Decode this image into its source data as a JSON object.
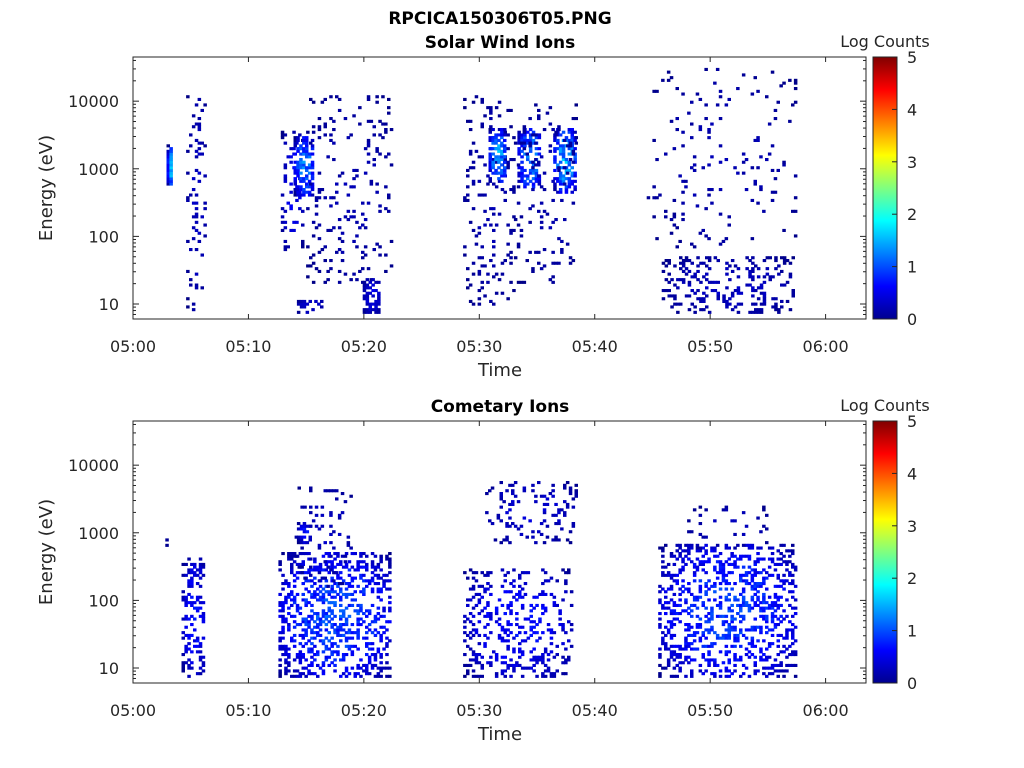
{
  "figure_title": "RPCICA150306T05.PNG",
  "chart_data": [
    {
      "type": "heatmap",
      "title": "Solar Wind Ions",
      "xlabel": "Time",
      "ylabel": "Energy (eV)",
      "x_ticks": [
        "05:00",
        "05:10",
        "05:20",
        "05:30",
        "05:40",
        "05:50",
        "06:00"
      ],
      "x_range_minutes": [
        0,
        63.5
      ],
      "y_scale": "log",
      "y_ticks": [
        10,
        100,
        1000,
        10000
      ],
      "y_tick_labels": [
        "10",
        "100",
        "1000",
        "10000"
      ],
      "ylim": [
        6,
        45000
      ],
      "colorbar": {
        "label": "Log Counts",
        "ticks": [
          "0",
          "1",
          "2",
          "3",
          "4",
          "5"
        ],
        "range": [
          0,
          5
        ]
      },
      "grid": false,
      "bursts": [
        {
          "t0": 2.9,
          "t1": 3.4,
          "e_lo": 550,
          "e_hi": 2200,
          "peak": 1.8,
          "density": 0.9
        },
        {
          "t0": 4.6,
          "t1": 6.2,
          "e_lo": 8,
          "e_hi": 15000,
          "peak": 0.4,
          "density": 0.12
        },
        {
          "t0": 12.8,
          "t1": 14.6,
          "e_lo": 60,
          "e_hi": 3500,
          "peak": 0.7,
          "density": 0.14
        },
        {
          "t0": 13.9,
          "t1": 15.6,
          "e_lo": 400,
          "e_hi": 3000,
          "peak": 1.5,
          "density": 0.6
        },
        {
          "t0": 14.2,
          "t1": 16.4,
          "e_lo": 7,
          "e_hi": 12,
          "peak": 0.5,
          "density": 0.4
        },
        {
          "t0": 15.0,
          "t1": 22.5,
          "e_lo": 20,
          "e_hi": 12000,
          "peak": 0.3,
          "density": 0.09
        },
        {
          "t0": 19.9,
          "t1": 21.3,
          "e_lo": 7,
          "e_hi": 25,
          "peak": 0.6,
          "density": 0.45
        },
        {
          "t0": 28.6,
          "t1": 33.0,
          "e_lo": 10,
          "e_hi": 12000,
          "peak": 0.3,
          "density": 0.09
        },
        {
          "t0": 30.8,
          "t1": 32.2,
          "e_lo": 600,
          "e_hi": 4000,
          "peak": 1.7,
          "density": 0.5
        },
        {
          "t0": 33.3,
          "t1": 35.2,
          "e_lo": 500,
          "e_hi": 4000,
          "peak": 1.6,
          "density": 0.5
        },
        {
          "t0": 36.4,
          "t1": 38.3,
          "e_lo": 450,
          "e_hi": 4000,
          "peak": 1.8,
          "density": 0.55
        },
        {
          "t0": 33.0,
          "t1": 38.5,
          "e_lo": 20,
          "e_hi": 9000,
          "peak": 0.3,
          "density": 0.08
        },
        {
          "t0": 44.5,
          "t1": 57.5,
          "e_lo": 60,
          "e_hi": 30000,
          "peak": 0.3,
          "density": 0.035
        },
        {
          "t0": 45.8,
          "t1": 57.3,
          "e_lo": 7,
          "e_hi": 50,
          "peak": 0.4,
          "density": 0.22
        }
      ]
    },
    {
      "type": "heatmap",
      "title": "Cometary Ions",
      "xlabel": "Time",
      "ylabel": "Energy (eV)",
      "x_ticks": [
        "05:00",
        "05:10",
        "05:20",
        "05:30",
        "05:40",
        "05:50",
        "06:00"
      ],
      "x_range_minutes": [
        0,
        63.5
      ],
      "y_scale": "log",
      "y_ticks": [
        10,
        100,
        1000,
        10000
      ],
      "y_tick_labels": [
        "10",
        "100",
        "1000",
        "10000"
      ],
      "ylim": [
        6,
        45000
      ],
      "colorbar": {
        "label": "Log Counts",
        "ticks": [
          "0",
          "1",
          "2",
          "3",
          "4",
          "5"
        ],
        "range": [
          0,
          5
        ]
      },
      "grid": false,
      "bursts": [
        {
          "t0": 2.8,
          "t1": 3.3,
          "e_lo": 600,
          "e_hi": 1000,
          "peak": 0.3,
          "density": 0.3
        },
        {
          "t0": 4.2,
          "t1": 6.2,
          "e_lo": 7,
          "e_hi": 450,
          "peak": 0.8,
          "density": 0.35
        },
        {
          "t0": 12.6,
          "t1": 22.3,
          "e_lo": 7,
          "e_hi": 500,
          "peak": 1.2,
          "density": 0.35
        },
        {
          "t0": 14.2,
          "t1": 15.3,
          "e_lo": 700,
          "e_hi": 1500,
          "peak": 0.8,
          "density": 0.5
        },
        {
          "t0": 14.0,
          "t1": 19.0,
          "e_lo": 150,
          "e_hi": 5500,
          "peak": 0.4,
          "density": 0.1
        },
        {
          "t0": 28.6,
          "t1": 37.9,
          "e_lo": 7,
          "e_hi": 300,
          "peak": 0.8,
          "density": 0.22
        },
        {
          "t0": 30.5,
          "t1": 38.3,
          "e_lo": 700,
          "e_hi": 6000,
          "peak": 0.5,
          "density": 0.15
        },
        {
          "t0": 45.5,
          "t1": 57.5,
          "e_lo": 7,
          "e_hi": 700,
          "peak": 1.1,
          "density": 0.3
        },
        {
          "t0": 48.0,
          "t1": 54.8,
          "e_lo": 500,
          "e_hi": 2500,
          "peak": 0.4,
          "density": 0.08
        }
      ]
    }
  ]
}
